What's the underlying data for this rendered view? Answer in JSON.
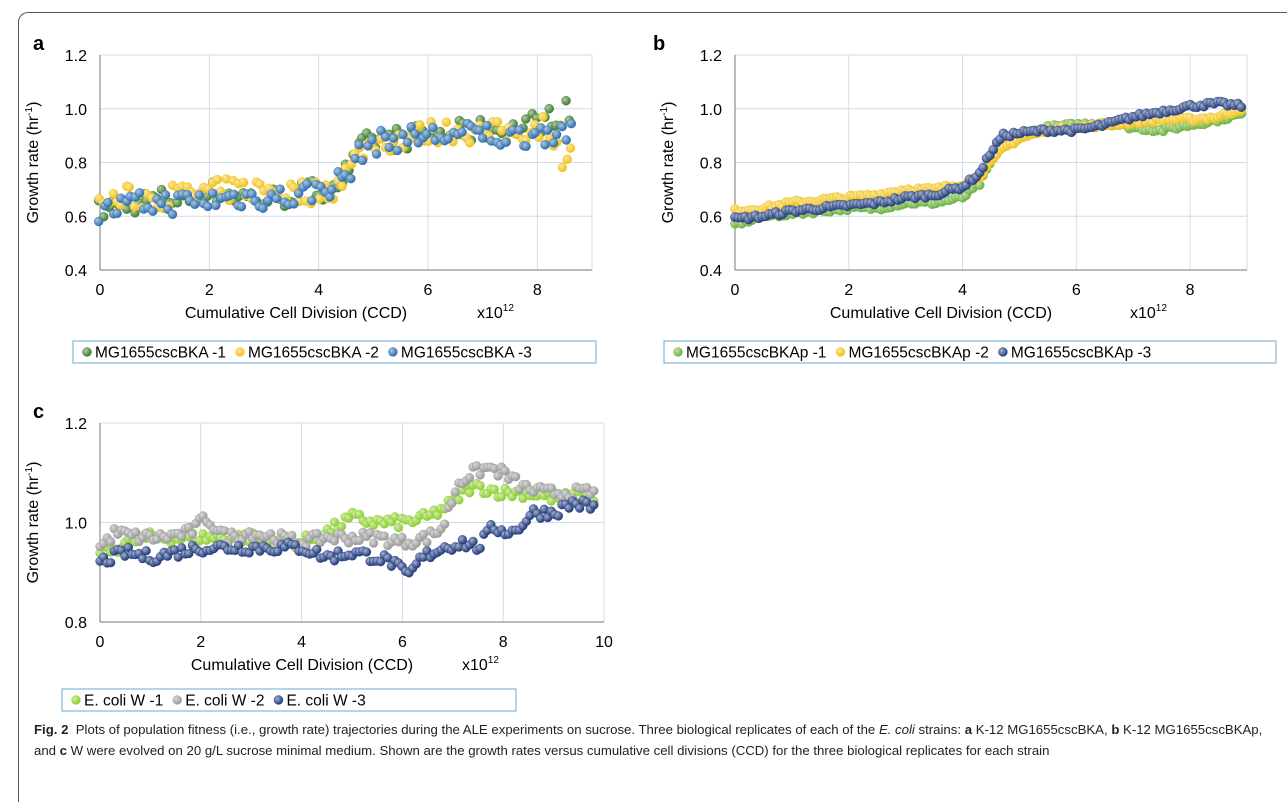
{
  "figure": {
    "caption": {
      "label": "Fig. 2",
      "part1": "Plots of population fitness (i.e., growth rate) trajectories during the ALE experiments on sucrose. Three biological replicates of each of the ",
      "organism": "E. coli",
      "part2": " strains: ",
      "a_letter": "a",
      "a_text": " K-12 MG1655cscBKA, ",
      "b_letter": "b",
      "b_text": " K-12 MG1655cscBKAp, and ",
      "c_letter": "c",
      "c_text": " W were evolved on 20 g/L sucrose minimal medium. Shown are the growth rates versus cumulative cell divisions (CCD) for the three biological replicates for each strain"
    }
  },
  "chart_data": [
    {
      "panel": "a",
      "type": "scatter",
      "xlabel": "Cumulative Cell Division (CCD)",
      "x_multiplier": "x10",
      "x_multiplier_exp": "12",
      "ylabel": "Growth rate (hr",
      "ylabel_exp": "-1",
      "ylabel_end": ")",
      "xlim": [
        0,
        9
      ],
      "ylim": [
        0.4,
        1.2
      ],
      "xticks": [
        0,
        2,
        4,
        6,
        8
      ],
      "yticks": [
        0.4,
        0.6,
        0.8,
        1.0,
        1.2
      ],
      "ytick_labels": [
        "0.4",
        "0.6",
        "0.8",
        "1.0",
        "1.2"
      ],
      "grid": true,
      "legend_placement": "bottom",
      "series": [
        {
          "name": "MG1655cscBKA -1",
          "color": "#3f7d2a",
          "x": [
            0,
            0.5,
            1,
            1.5,
            2,
            2.5,
            3,
            3.5,
            4,
            4.3,
            4.6,
            4.8,
            5,
            5.5,
            6,
            6.5,
            7,
            7.5,
            8,
            8.3,
            8.5,
            8.6
          ],
          "y": [
            0.62,
            0.65,
            0.66,
            0.67,
            0.69,
            0.68,
            0.66,
            0.68,
            0.7,
            0.72,
            0.78,
            0.86,
            0.88,
            0.89,
            0.9,
            0.91,
            0.92,
            0.92,
            0.95,
            0.97,
            0.99,
            0.99
          ]
        },
        {
          "name": "MG1655cscBKA -2",
          "color": "#f2c218",
          "x": [
            0,
            0.5,
            1,
            1.5,
            2,
            2.5,
            3,
            3.5,
            4,
            4.3,
            4.6,
            4.8,
            5,
            5.5,
            6,
            6.5,
            7,
            7.5,
            8,
            8.2,
            8.35,
            8.5,
            8.6
          ],
          "y": [
            0.65,
            0.67,
            0.67,
            0.68,
            0.69,
            0.7,
            0.7,
            0.69,
            0.69,
            0.71,
            0.79,
            0.85,
            0.87,
            0.89,
            0.91,
            0.92,
            0.91,
            0.91,
            0.93,
            0.95,
            0.84,
            0.82,
            0.86
          ]
        },
        {
          "name": "MG1655cscBKA -3",
          "color": "#2d6fae",
          "x": [
            0,
            0.5,
            1,
            1.5,
            2,
            2.5,
            3,
            3.5,
            4,
            4.3,
            4.6,
            4.8,
            5,
            5.5,
            6,
            6.5,
            7,
            7.5,
            8,
            8.3,
            8.5,
            8.6
          ],
          "y": [
            0.61,
            0.64,
            0.65,
            0.65,
            0.66,
            0.67,
            0.67,
            0.67,
            0.7,
            0.72,
            0.77,
            0.85,
            0.87,
            0.89,
            0.9,
            0.9,
            0.91,
            0.89,
            0.91,
            0.91,
            0.92,
            0.9
          ]
        }
      ],
      "point_count": 110
    },
    {
      "panel": "b",
      "type": "scatter",
      "xlabel": "Cumulative Cell Division (CCD)",
      "x_multiplier": "x10",
      "x_multiplier_exp": "12",
      "ylabel": "Growth rate (hr",
      "ylabel_exp": "-1",
      "ylabel_end": ")",
      "xlim": [
        0,
        9
      ],
      "ylim": [
        0.4,
        1.2
      ],
      "xticks": [
        0,
        2,
        4,
        6,
        8
      ],
      "yticks": [
        0.4,
        0.6,
        0.8,
        1.0,
        1.2
      ],
      "ytick_labels": [
        "0.4",
        "0.6",
        "0.8",
        "1.0",
        "1.2"
      ],
      "grid": true,
      "legend_placement": "bottom",
      "series": [
        {
          "name": "MG1655cscBKAp -1",
          "color": "#6db23f",
          "x": [
            0,
            0.5,
            1,
            1.5,
            2,
            2.5,
            3,
            3.5,
            4,
            4.3,
            4.5,
            4.7,
            5,
            5.5,
            6,
            6.5,
            7,
            7.5,
            8,
            8.5,
            8.9
          ],
          "y": [
            0.57,
            0.6,
            0.61,
            0.62,
            0.63,
            0.63,
            0.65,
            0.65,
            0.67,
            0.72,
            0.8,
            0.87,
            0.9,
            0.93,
            0.94,
            0.95,
            0.93,
            0.92,
            0.94,
            0.96,
            0.98
          ]
        },
        {
          "name": "MG1655cscBKAp -2",
          "color": "#f2c218",
          "x": [
            0,
            0.5,
            1,
            1.5,
            2,
            2.5,
            3,
            3.5,
            4,
            4.3,
            4.5,
            4.7,
            5,
            5.5,
            6,
            6.5,
            7,
            7.5,
            8,
            8.5,
            8.9
          ],
          "y": [
            0.62,
            0.63,
            0.65,
            0.66,
            0.67,
            0.68,
            0.7,
            0.7,
            0.72,
            0.75,
            0.8,
            0.85,
            0.89,
            0.92,
            0.93,
            0.94,
            0.95,
            0.96,
            0.96,
            0.97,
            1.0
          ]
        },
        {
          "name": "MG1655cscBKAp -3",
          "color": "#243f80",
          "x": [
            0,
            0.5,
            1,
            1.5,
            2,
            2.5,
            3,
            3.5,
            4,
            4.3,
            4.5,
            4.7,
            5,
            5.5,
            6,
            6.5,
            7,
            7.5,
            8,
            8.5,
            8.9
          ],
          "y": [
            0.59,
            0.6,
            0.62,
            0.63,
            0.64,
            0.65,
            0.67,
            0.68,
            0.71,
            0.76,
            0.84,
            0.9,
            0.91,
            0.92,
            0.92,
            0.94,
            0.97,
            0.99,
            1.01,
            1.02,
            1.01
          ]
        }
      ],
      "point_count": 150
    },
    {
      "panel": "c",
      "type": "scatter",
      "xlabel": "Cumulative Cell Division (CCD)",
      "x_multiplier": "x10",
      "x_multiplier_exp": "12",
      "ylabel": "Growth rate (hr",
      "ylabel_exp": "-1",
      "ylabel_end": ")",
      "xlim": [
        0,
        10
      ],
      "ylim": [
        0.8,
        1.2
      ],
      "xticks": [
        0,
        2,
        4,
        6,
        8,
        10
      ],
      "yticks": [
        0.8,
        1.0,
        1.2
      ],
      "ytick_labels": [
        "0.8",
        "1.0",
        "1.2"
      ],
      "grid": true,
      "legend_placement": "bottom",
      "series": [
        {
          "name": "E. coli W -1",
          "color": "#8ccf2e",
          "x": [
            0,
            0.5,
            1,
            1.5,
            2,
            2.5,
            3,
            3.5,
            4,
            4.5,
            5,
            5.5,
            6,
            6.5,
            7,
            7.3,
            7.6,
            8,
            8.5,
            9,
            9.5,
            9.8
          ],
          "y": [
            0.93,
            0.96,
            0.97,
            0.97,
            0.97,
            0.97,
            0.97,
            0.96,
            0.96,
            0.98,
            1.01,
            1.0,
            1.0,
            1.01,
            1.04,
            1.07,
            1.07,
            1.06,
            1.06,
            1.05,
            1.05,
            1.05
          ]
        },
        {
          "name": "E. coli W -2",
          "color": "#9a9a9a",
          "x": [
            0,
            0.3,
            0.8,
            1.2,
            1.8,
            2.1,
            2.5,
            3,
            3.5,
            4,
            4.5,
            5,
            5.5,
            6,
            6.5,
            6.8,
            7.1,
            7.4,
            7.7,
            8,
            8.4,
            8.8,
            9.2,
            9.6,
            9.8
          ],
          "y": [
            0.95,
            0.98,
            0.97,
            0.97,
            0.98,
            1.01,
            0.97,
            0.98,
            0.97,
            0.96,
            0.97,
            0.97,
            0.97,
            0.96,
            0.97,
            0.99,
            1.08,
            1.1,
            1.11,
            1.1,
            1.07,
            1.06,
            1.06,
            1.06,
            1.06
          ]
        },
        {
          "name": "E. coli W -3",
          "color": "#1f3a7e",
          "x": [
            0,
            0.5,
            1,
            1.5,
            2,
            2.5,
            3,
            3.5,
            4,
            4.5,
            5,
            5.5,
            5.8,
            6.1,
            6.4,
            6.8,
            7.2,
            7.5,
            7.8,
            8.2,
            8.6,
            9,
            9.4,
            9.8
          ],
          "y": [
            0.92,
            0.94,
            0.93,
            0.94,
            0.95,
            0.95,
            0.95,
            0.95,
            0.95,
            0.93,
            0.94,
            0.93,
            0.92,
            0.89,
            0.93,
            0.95,
            0.96,
            0.95,
            0.99,
            0.98,
            1.02,
            1.02,
            1.04,
            1.03
          ]
        }
      ],
      "point_count": 140
    }
  ]
}
